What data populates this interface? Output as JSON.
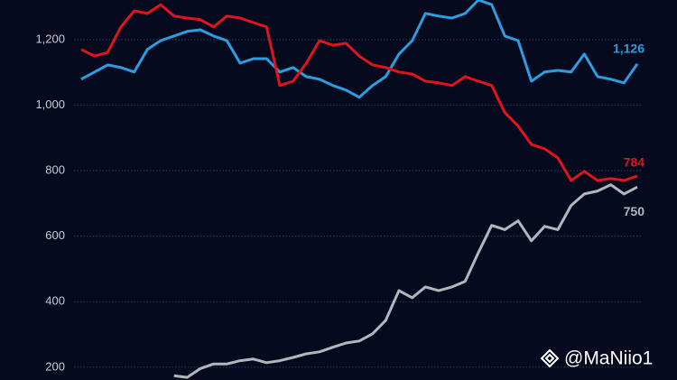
{
  "chart_data": {
    "type": "line",
    "ylim": [
      161,
      1321
    ],
    "yticks": [
      {
        "value": 200,
        "label": "200"
      },
      {
        "value": 400,
        "label": "400"
      },
      {
        "value": 600,
        "label": "600"
      },
      {
        "value": 800,
        "label": "800"
      },
      {
        "value": 1000,
        "label": "1,000"
      },
      {
        "value": 1200,
        "label": "1,200"
      }
    ],
    "grid": true,
    "series": [
      {
        "color": "#2b9de0",
        "values": [
          1079,
          1101,
          1123,
          1115,
          1101,
          1170,
          1197,
          1211,
          1225,
          1230,
          1211,
          1197,
          1128,
          1142,
          1142,
          1101,
          1115,
          1087,
          1079,
          1060,
          1046,
          1024,
          1060,
          1087,
          1156,
          1197,
          1280,
          1272,
          1266,
          1280,
          1321,
          1307,
          1211,
          1197,
          1073,
          1101,
          1106,
          1101,
          1156,
          1087,
          1079,
          1068,
          1126
        ],
        "value_labels": [
          null,
          null,
          null,
          null,
          null,
          null,
          null,
          null,
          null,
          null,
          null,
          null,
          null,
          null,
          null,
          null,
          null,
          null,
          null,
          null,
          null,
          null,
          null,
          null,
          null,
          null,
          null,
          null,
          null,
          null,
          null,
          null,
          null,
          null,
          null,
          null,
          null,
          null,
          null,
          null,
          null,
          null,
          "1,126"
        ]
      },
      {
        "color": "#e0141e",
        "values": [
          1170,
          1150,
          1161,
          1239,
          1288,
          1280,
          1307,
          1272,
          1266,
          1261,
          1239,
          1272,
          1266,
          1252,
          1239,
          1060,
          1073,
          1128,
          1197,
          1183,
          1189,
          1150,
          1123,
          1115,
          1101,
          1095,
          1073,
          1068,
          1060,
          1087,
          1073,
          1060,
          977,
          936,
          880,
          867,
          839,
          770,
          798,
          770,
          776,
          770,
          784
        ],
        "value_labels": [
          null,
          null,
          null,
          null,
          null,
          null,
          null,
          null,
          null,
          null,
          null,
          null,
          null,
          null,
          null,
          null,
          null,
          null,
          null,
          null,
          null,
          null,
          null,
          null,
          null,
          null,
          null,
          null,
          null,
          null,
          null,
          null,
          null,
          null,
          null,
          null,
          null,
          null,
          null,
          null,
          null,
          null,
          "784"
        ]
      },
      {
        "color": "#b4b6be",
        "values": [
          null,
          null,
          null,
          null,
          null,
          null,
          null,
          174,
          169,
          196,
          210,
          210,
          220,
          225,
          214,
          220,
          230,
          241,
          247,
          261,
          274,
          280,
          302,
          343,
          434,
          412,
          445,
          434,
          445,
          462,
          550,
          633,
          620,
          647,
          586,
          630,
          620,
          694,
          729,
          738,
          757,
          729,
          750
        ],
        "value_labels": [
          null,
          null,
          null,
          null,
          null,
          null,
          null,
          null,
          null,
          null,
          null,
          null,
          null,
          null,
          null,
          null,
          null,
          null,
          null,
          null,
          null,
          null,
          null,
          null,
          null,
          null,
          null,
          null,
          null,
          null,
          null,
          null,
          null,
          null,
          null,
          null,
          null,
          null,
          null,
          null,
          null,
          null,
          "750"
        ]
      }
    ]
  },
  "watermark": "@MaNiio1"
}
